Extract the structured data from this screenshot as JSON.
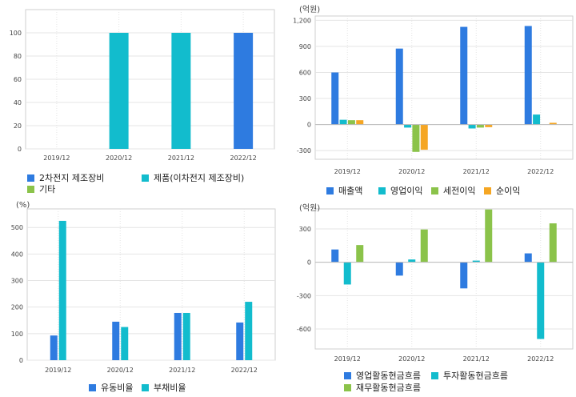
{
  "colors": {
    "blue": "#2e7be0",
    "cyan": "#12bccd",
    "green": "#8bc34a",
    "orange": "#f5a623",
    "grid": "#e4e4e4",
    "axis": "#999999"
  },
  "chart_data": [
    {
      "type": "bar",
      "unit": "",
      "categories": [
        "2019/12",
        "2020/12",
        "2021/12",
        "2022/12"
      ],
      "ylim": [
        0,
        120
      ],
      "yticks": [
        "0",
        "20",
        "40",
        "60",
        "80",
        "100"
      ],
      "yticks_values": [
        0,
        20,
        40,
        60,
        80,
        100
      ],
      "grid": true,
      "legend_position": "bottom",
      "series": [
        {
          "name": "2차전지 제조장비",
          "color": "#2e7be0",
          "values": [
            null,
            null,
            null,
            100
          ]
        },
        {
          "name": "제품(이차전지 제조장비)",
          "color": "#12bccd",
          "values": [
            null,
            100,
            100,
            null
          ]
        },
        {
          "name": "기타",
          "color": "#8bc34a",
          "values": [
            null,
            null,
            null,
            null
          ]
        }
      ]
    },
    {
      "type": "bar",
      "unit": "(억원)",
      "categories": [
        "2019/12",
        "2020/12",
        "2021/12",
        "2022/12"
      ],
      "ylim": [
        -400,
        1250
      ],
      "yticks": [
        "-300",
        "0",
        "300",
        "600",
        "900",
        "1,200"
      ],
      "yticks_values": [
        -300,
        0,
        300,
        600,
        900,
        1200
      ],
      "grid": true,
      "legend_position": "bottom",
      "series": [
        {
          "name": "매출액",
          "color": "#2e7be0",
          "values": [
            600,
            875,
            1125,
            1135
          ]
        },
        {
          "name": "영업이익",
          "color": "#12bccd",
          "values": [
            55,
            -35,
            -45,
            115
          ]
        },
        {
          "name": "세전이익",
          "color": "#8bc34a",
          "values": [
            50,
            -315,
            -35,
            null
          ]
        },
        {
          "name": "순이익",
          "color": "#f5a623",
          "values": [
            50,
            -290,
            -30,
            20
          ]
        }
      ]
    },
    {
      "type": "bar",
      "unit": "(%)",
      "categories": [
        "2019/12",
        "2020/12",
        "2021/12",
        "2022/12"
      ],
      "ylim": [
        0,
        570
      ],
      "yticks": [
        "0",
        "100",
        "200",
        "300",
        "400",
        "500"
      ],
      "yticks_values": [
        0,
        100,
        200,
        300,
        400,
        500
      ],
      "grid": true,
      "legend_position": "bottom",
      "series": [
        {
          "name": "유동비율",
          "color": "#2e7be0",
          "values": [
            93,
            145,
            178,
            142
          ]
        },
        {
          "name": "부채비율",
          "color": "#12bccd",
          "values": [
            525,
            125,
            178,
            220
          ]
        }
      ]
    },
    {
      "type": "bar",
      "unit": "(억원)",
      "categories": [
        "2019/12",
        "2020/12",
        "2021/12",
        "2022/12"
      ],
      "ylim": [
        -780,
        480
      ],
      "yticks": [
        "-600",
        "-300",
        "0",
        "300"
      ],
      "yticks_values": [
        -600,
        -300,
        0,
        300
      ],
      "grid": true,
      "legend_position": "bottom",
      "series": [
        {
          "name": "영업활동현금흐름",
          "color": "#2e7be0",
          "values": [
            115,
            -120,
            -235,
            80
          ]
        },
        {
          "name": "투자활동현금흐름",
          "color": "#12bccd",
          "values": [
            -200,
            25,
            15,
            -690
          ]
        },
        {
          "name": "재무활동현금흐름",
          "color": "#8bc34a",
          "values": [
            155,
            295,
            475,
            350
          ]
        }
      ]
    }
  ]
}
